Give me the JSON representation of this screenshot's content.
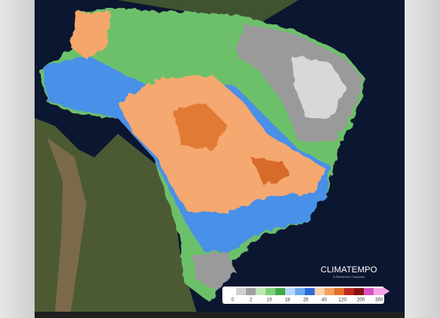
{
  "logo": {
    "name": "CLIMATEMPO",
    "tagline": "A StormGeo Company"
  },
  "legend": {
    "labels": [
      "0",
      "2",
      "10",
      "18",
      "26",
      "40",
      "120",
      "200",
      "300"
    ]
  }
}
